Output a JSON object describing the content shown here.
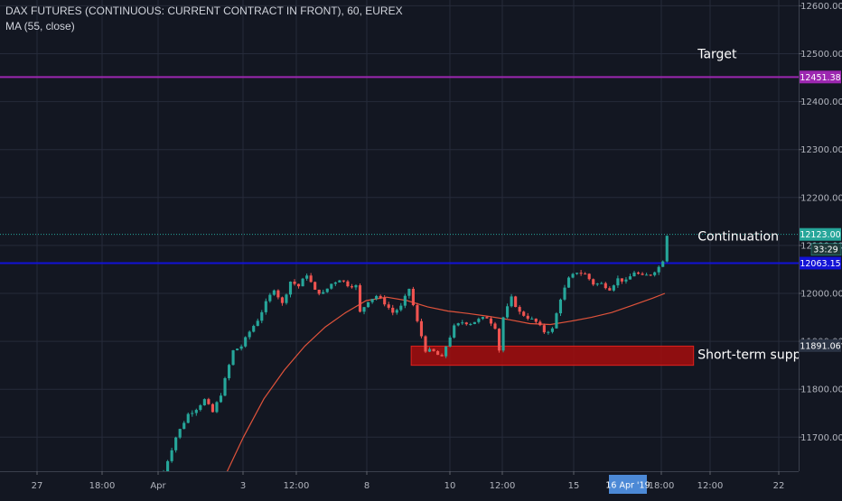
{
  "header": {
    "symbol_line": "DAX FUTURES (CONTINUOUS: CURRENT CONTRACT IN FRONT), 60, EUREX",
    "indicator_line": "MA (55, close)"
  },
  "colors": {
    "background": "#131722",
    "grid": "#262b3a",
    "up": "#26a69a",
    "down": "#ef5350",
    "ma": "#e0533b",
    "target_line": "#9c27b0",
    "breakout_line": "#1212d6",
    "support_zone": "#a60d0d",
    "current_price": "#26a69a"
  },
  "chart_data": {
    "type": "candlestick",
    "y_axis": {
      "range": [
        11620,
        12640
      ],
      "ticks": [
        "11700.00",
        "11800.00",
        "11900.00",
        "12000.00",
        "12100.00",
        "12200.00",
        "12300.00",
        "12400.00",
        "12500.00",
        "12600.00"
      ]
    },
    "x_axis": {
      "ticks": [
        "27",
        "18:00",
        "Apr",
        "3",
        "12:00",
        "8",
        "10",
        "12:00",
        "15",
        "18:00",
        "12:00",
        "22"
      ],
      "highlight_label": "16 Apr '19"
    },
    "price_path": [
      [
        0,
        11628
      ],
      [
        3,
        11700
      ],
      [
        6,
        11748
      ],
      [
        8,
        11760
      ],
      [
        10,
        11778
      ],
      [
        12,
        11752
      ],
      [
        14,
        11790
      ],
      [
        17,
        11880
      ],
      [
        19,
        11890
      ],
      [
        21,
        11920
      ],
      [
        23,
        11945
      ],
      [
        25,
        11980
      ],
      [
        27,
        12010
      ],
      [
        29,
        11978
      ],
      [
        31,
        12025
      ],
      [
        33,
        12015
      ],
      [
        35,
        12040
      ],
      [
        37,
        12005
      ],
      [
        39,
        12000
      ],
      [
        41,
        12020
      ],
      [
        43,
        12030
      ],
      [
        45,
        12018
      ],
      [
        47,
        12015
      ],
      [
        48,
        11960
      ],
      [
        50,
        11985
      ],
      [
        52,
        11995
      ],
      [
        54,
        11980
      ],
      [
        56,
        11960
      ],
      [
        58,
        11972
      ],
      [
        60,
        12010
      ],
      [
        62,
        11940
      ],
      [
        64,
        11882
      ],
      [
        66,
        11878
      ],
      [
        68,
        11865
      ],
      [
        69,
        11890
      ],
      [
        71,
        11930
      ],
      [
        73,
        11940
      ],
      [
        75,
        11938
      ],
      [
        77,
        11945
      ],
      [
        79,
        11950
      ],
      [
        81,
        11930
      ],
      [
        82,
        11882
      ],
      [
        83,
        11950
      ],
      [
        85,
        11990
      ],
      [
        87,
        11960
      ],
      [
        89,
        11950
      ],
      [
        91,
        11940
      ],
      [
        93,
        11920
      ],
      [
        95,
        11925
      ],
      [
        97,
        11990
      ],
      [
        99,
        12030
      ],
      [
        101,
        12045
      ],
      [
        103,
        12040
      ],
      [
        105,
        12020
      ],
      [
        107,
        12020
      ],
      [
        109,
        12010
      ],
      [
        111,
        12030
      ],
      [
        113,
        12025
      ],
      [
        115,
        12045
      ],
      [
        117,
        12035
      ],
      [
        119,
        12040
      ],
      [
        121,
        12055
      ],
      [
        122,
        12070
      ],
      [
        123,
        12123
      ]
    ],
    "ma_path": [
      [
        15,
        11610
      ],
      [
        20,
        11700
      ],
      [
        25,
        11780
      ],
      [
        30,
        11840
      ],
      [
        35,
        11890
      ],
      [
        40,
        11930
      ],
      [
        45,
        11960
      ],
      [
        50,
        11985
      ],
      [
        55,
        11992
      ],
      [
        60,
        11985
      ],
      [
        65,
        11972
      ],
      [
        70,
        11963
      ],
      [
        75,
        11958
      ],
      [
        80,
        11952
      ],
      [
        85,
        11945
      ],
      [
        90,
        11937
      ],
      [
        95,
        11935
      ],
      [
        100,
        11942
      ],
      [
        105,
        11950
      ],
      [
        110,
        11960
      ],
      [
        115,
        11975
      ],
      [
        120,
        11990
      ],
      [
        123,
        12000
      ]
    ],
    "horizontal_lines": [
      {
        "price": 12451.38,
        "label": "12451.38",
        "color_key": "target_line"
      },
      {
        "price": 12063.15,
        "label": "12063.15",
        "color_key": "breakout_line"
      },
      {
        "price": 12123.0,
        "label": "12123.00",
        "color_key": "current_price",
        "dotted": true
      }
    ],
    "price_marker": {
      "price": 11891.06,
      "label": "11891.06"
    },
    "countdown_label": "33:29",
    "support_zone": {
      "from": 11850,
      "to": 11890,
      "start_bar": 61,
      "end_bar": 130
    },
    "annotations": [
      {
        "text": "Target",
        "price": 12500,
        "bar": 131
      },
      {
        "text": "Continuation",
        "price": 12120,
        "bar": 131
      },
      {
        "text": "Short-term support",
        "price": 11873,
        "bar": 131
      }
    ]
  }
}
